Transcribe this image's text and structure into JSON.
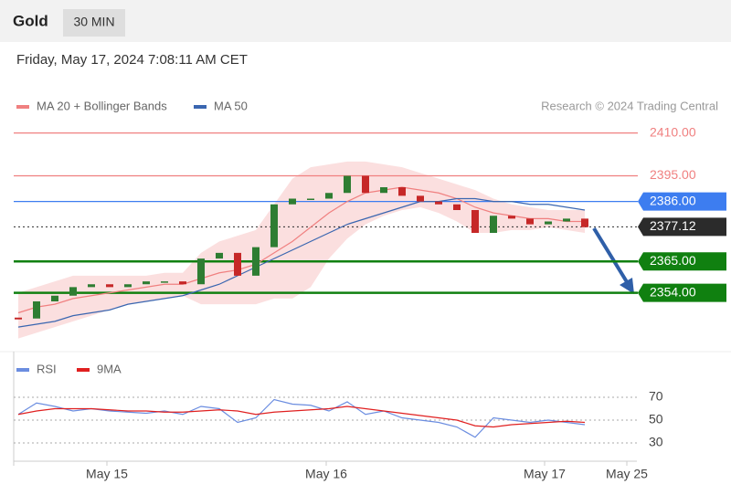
{
  "header": {
    "title": "Gold",
    "interval": "30 MIN",
    "date": "Friday, May 17, 2024 7:08:11 AM CET",
    "credit": "Research © 2024 Trading Central"
  },
  "chart_data": [
    {
      "type": "candlestick",
      "legend": [
        "MA 20 + Bollinger Bands",
        "MA 50"
      ],
      "xlim": [
        -0.25,
        33.75
      ],
      "xticks": [
        {
          "value": 4.85,
          "label": "May 15"
        },
        {
          "value": 16.85,
          "label": "May 16"
        },
        {
          "value": 28.8,
          "label": "May 17"
        },
        {
          "value": 33.3,
          "label": "May 25"
        }
      ],
      "ylim": [
        2335,
        2415
      ],
      "close": [
        2345,
        2351,
        2353,
        2356,
        2357,
        2356,
        2357,
        2358,
        2358,
        2357,
        2366,
        2368,
        2360,
        2370,
        2385,
        2387,
        2387,
        2389,
        2395,
        2389,
        2391,
        2388,
        2386,
        2385,
        2383,
        2375,
        2381,
        2380,
        2378,
        2379,
        2380,
        2377
      ],
      "up_color": "#2e7d32",
      "down_color": "#c62828",
      "series": [
        {
          "name": "MA 20 + Bollinger Bands",
          "color": "#f08080",
          "values": [
            2347,
            2349,
            2350,
            2352,
            2353,
            2354,
            2355,
            2356,
            2357,
            2357,
            2359,
            2361,
            2362,
            2364,
            2368,
            2372,
            2377,
            2382,
            2386,
            2389,
            2390,
            2391,
            2390,
            2389,
            2387,
            2384,
            2382,
            2381,
            2380,
            2380,
            2379,
            2379
          ],
          "upper": [
            2354,
            2356,
            2358,
            2360,
            2360,
            2360,
            2360,
            2360,
            2361,
            2361,
            2368,
            2372,
            2374,
            2376,
            2385,
            2394,
            2398,
            2399,
            2400,
            2400,
            2399,
            2398,
            2396,
            2394,
            2392,
            2390,
            2387,
            2385,
            2384,
            2383,
            2383,
            2383
          ],
          "lower": [
            2338,
            2340,
            2342,
            2344,
            2346,
            2348,
            2350,
            2351,
            2352,
            2353,
            2350,
            2350,
            2350,
            2350,
            2352,
            2352,
            2356,
            2366,
            2373,
            2378,
            2381,
            2383,
            2384,
            2382,
            2379,
            2375,
            2375,
            2376,
            2376,
            2377,
            2376,
            2375
          ]
        },
        {
          "name": "MA 50",
          "color": "#3a66b0",
          "values": [
            2342,
            2343,
            2344,
            2346,
            2347,
            2348,
            2350,
            2351,
            2352,
            2353,
            2355,
            2357,
            2360,
            2363,
            2366,
            2369,
            2372,
            2375,
            2378,
            2380,
            2382,
            2384,
            2386,
            2386,
            2387,
            2387,
            2386,
            2386,
            2385,
            2385,
            2384,
            2383
          ]
        }
      ],
      "levels": [
        {
          "value": 2410,
          "label": "2410.00",
          "color": "#f08080",
          "style": "text"
        },
        {
          "value": 2395,
          "label": "2395.00",
          "color": "#f08080",
          "style": "text"
        },
        {
          "value": 2386,
          "label": "2386.00",
          "color": "#3d7df0",
          "style": "box"
        },
        {
          "value": 2377.12,
          "label": "2377.12",
          "color": "#2b2b2b",
          "style": "dotted"
        },
        {
          "value": 2365,
          "label": "2365.00",
          "color": "#108010",
          "style": "box"
        },
        {
          "value": 2354,
          "label": "2354.00",
          "color": "#108010",
          "style": "box"
        }
      ]
    },
    {
      "type": "line",
      "legend": [
        "RSI",
        "9MA"
      ],
      "xlim": [
        -0.25,
        33.75
      ],
      "ylim": [
        14,
        86
      ],
      "yticks": [
        30,
        50,
        70
      ],
      "series": [
        {
          "name": "RSI",
          "color": "#6b8de0",
          "values": [
            55,
            65,
            62,
            58,
            60,
            58,
            57,
            56,
            58,
            55,
            62,
            60,
            48,
            52,
            68,
            64,
            63,
            58,
            66,
            55,
            58,
            52,
            50,
            48,
            44,
            35,
            52,
            50,
            48,
            50,
            48,
            46
          ]
        },
        {
          "name": "9MA",
          "color": "#e02020",
          "values": [
            55,
            58,
            60,
            60,
            60,
            59,
            58,
            58,
            57,
            57,
            58,
            59,
            58,
            55,
            57,
            58,
            59,
            60,
            62,
            60,
            58,
            56,
            54,
            52,
            50,
            45,
            44,
            46,
            47,
            48,
            49,
            48
          ]
        }
      ]
    }
  ]
}
